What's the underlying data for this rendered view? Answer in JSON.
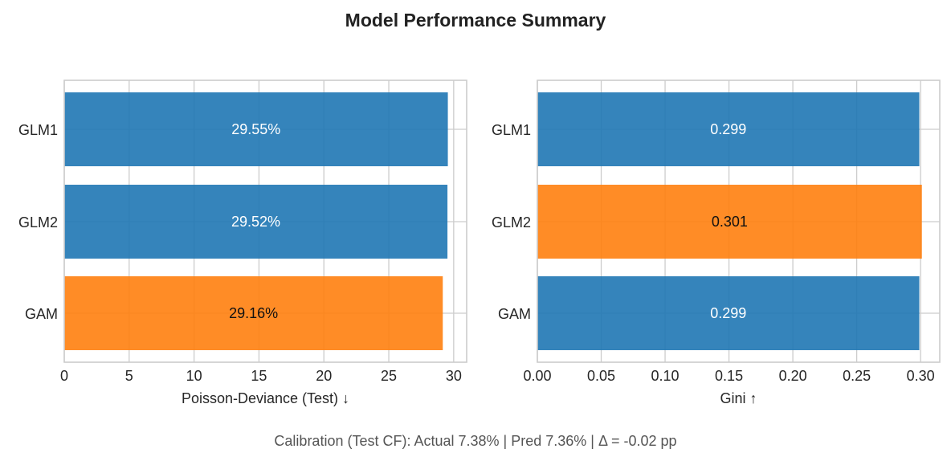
{
  "title": "Model Performance Summary",
  "footnote": "Calibration (Test CF): Actual 7.38%  |  Pred 7.36%  |  Δ = -0.02 pp",
  "colors": {
    "default": "#1f77b4",
    "best": "#ff7f0e",
    "label_on_default": "#ffffff",
    "label_on_best": "#111111"
  },
  "chart_data": [
    {
      "type": "bar",
      "orientation": "horizontal",
      "categories": [
        "GLM1",
        "GLM2",
        "GAM"
      ],
      "values": [
        29.55,
        29.52,
        29.16
      ],
      "value_labels": [
        "29.55%",
        "29.52%",
        "29.16%"
      ],
      "highlight": [
        false,
        false,
        true
      ],
      "xlabel": "Poisson-Deviance (Test) ↓",
      "ylabel": "",
      "xlim": [
        0,
        31
      ],
      "xticks": [
        0,
        5,
        10,
        15,
        20,
        25,
        30
      ],
      "xtick_labels": [
        "0",
        "5",
        "10",
        "15",
        "20",
        "25",
        "30"
      ],
      "grid": true
    },
    {
      "type": "bar",
      "orientation": "horizontal",
      "categories": [
        "GLM1",
        "GLM2",
        "GAM"
      ],
      "values": [
        0.299,
        0.301,
        0.299
      ],
      "value_labels": [
        "0.299",
        "0.301",
        "0.299"
      ],
      "highlight": [
        false,
        true,
        false
      ],
      "xlabel": "Gini ↑",
      "ylabel": "",
      "xlim": [
        0,
        0.315
      ],
      "xticks": [
        0.0,
        0.05,
        0.1,
        0.15,
        0.2,
        0.25,
        0.3
      ],
      "xtick_labels": [
        "0.00",
        "0.05",
        "0.10",
        "0.15",
        "0.20",
        "0.25",
        "0.30"
      ],
      "grid": true
    }
  ]
}
